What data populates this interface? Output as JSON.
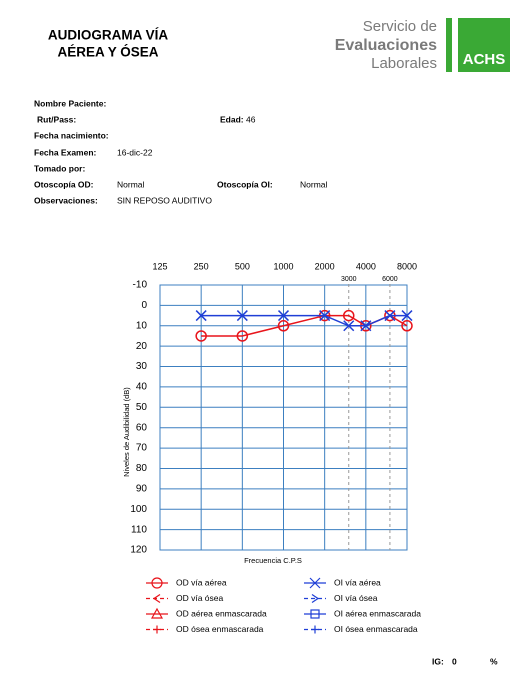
{
  "header": {
    "title_lines": [
      "AUDIOGRAMA VÍA",
      "AÉREA Y ÓSEA"
    ],
    "logo_lines": [
      "Servicio de",
      "Evaluaciones",
      "Laborales"
    ],
    "logo_badge": "ACHS"
  },
  "patient": {
    "name_label": "Nombre Paciente:",
    "rut_label": "Rut/Pass:",
    "age_label": "Edad:",
    "age": 46,
    "birth_label": "Fecha nacimiento:",
    "exam_label": "Fecha Examen:",
    "exam_date": "16-dic-22",
    "by_label": "Tomado por:",
    "od_label": "Otoscopía OD:",
    "od": "Normal",
    "oi_label": "Otoscopía OI:",
    "oi": "Normal",
    "obs_label": "Observaciones:",
    "obs": "SIN REPOSO AUDITIVO"
  },
  "chart_data": {
    "type": "line",
    "y_label": "Niveles de Audibilidad (dB)",
    "x_label": "Frecuencia C.P.S",
    "x": [
      250,
      500,
      1000,
      2000,
      3000,
      4000,
      6000,
      8000
    ],
    "log_x": true,
    "xlim": [
      125,
      8000
    ],
    "xticks": [
      125,
      250,
      500,
      1000,
      2000,
      4000,
      8000
    ],
    "minor_xticks": [
      3000,
      6000
    ],
    "ylim": [
      -10,
      120
    ],
    "y_inverted": true,
    "yticks": [
      -10,
      0,
      10,
      20,
      30,
      40,
      50,
      60,
      70,
      80,
      90,
      100,
      110,
      120
    ],
    "grid": true,
    "series": [
      {
        "name": "OD vía aérea",
        "color": "#e8141b",
        "marker": "circle",
        "dash": false,
        "values": [
          15,
          15,
          10,
          5,
          5,
          10,
          5,
          10
        ]
      },
      {
        "name": "OD vía ósea",
        "color": "#e8141b",
        "marker": "lt",
        "dash": true,
        "values": [
          null,
          null,
          null,
          null,
          null,
          null,
          null,
          null
        ]
      },
      {
        "name": "OD aérea enmascarada",
        "color": "#e8141b",
        "marker": "triangle",
        "dash": false,
        "values": [
          null,
          null,
          null,
          null,
          null,
          null,
          null,
          null
        ]
      },
      {
        "name": "OD ósea enmascarada",
        "color": "#e8141b",
        "marker": "plus",
        "dash": true,
        "values": [
          null,
          null,
          null,
          null,
          null,
          null,
          null,
          null
        ]
      },
      {
        "name": "OI vía aérea",
        "color": "#1f3fd6",
        "marker": "x",
        "dash": false,
        "values": [
          5,
          5,
          5,
          5,
          10,
          10,
          5,
          5
        ]
      },
      {
        "name": "OI vía ósea",
        "color": "#1f3fd6",
        "marker": "gt",
        "dash": true,
        "values": [
          null,
          null,
          null,
          null,
          null,
          null,
          null,
          null
        ]
      },
      {
        "name": "OI aérea enmascarada",
        "color": "#1f3fd6",
        "marker": "square",
        "dash": false,
        "values": [
          null,
          null,
          null,
          null,
          null,
          null,
          null,
          null
        ]
      },
      {
        "name": "OI ósea enmascarada",
        "color": "#1f3fd6",
        "marker": "plus",
        "dash": true,
        "values": [
          null,
          null,
          null,
          null,
          null,
          null,
          null,
          null
        ]
      }
    ]
  },
  "footer": {
    "ig_label": "IG:",
    "ig": 0,
    "unit": "%"
  }
}
